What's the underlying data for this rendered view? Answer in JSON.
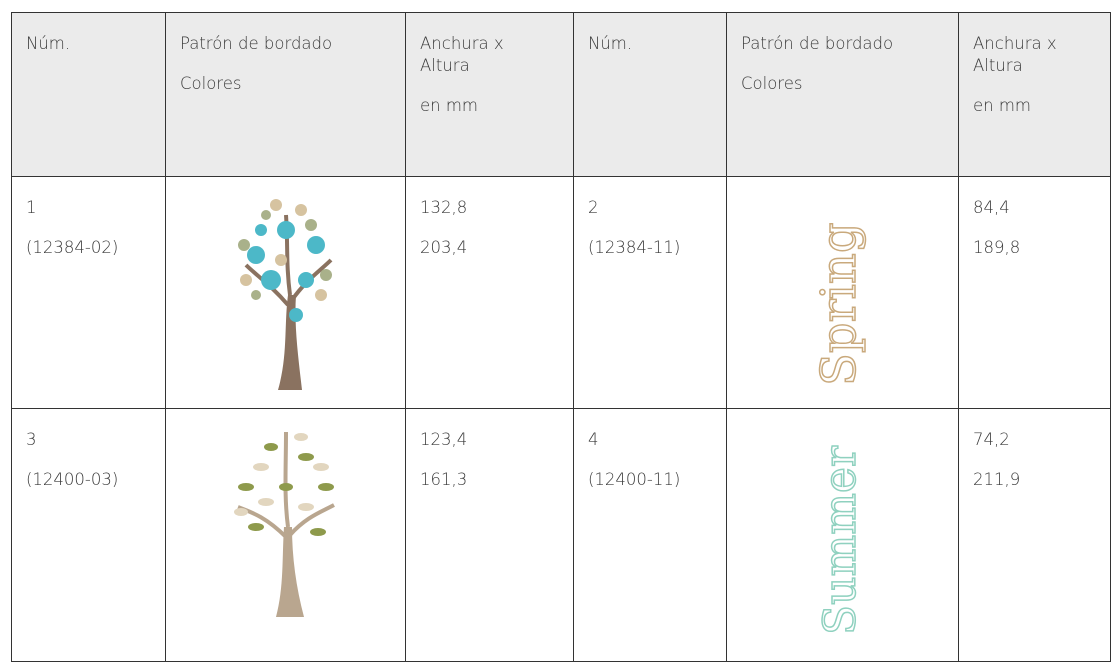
{
  "table": {
    "header": [
      "Núm.",
      "Patrón de bordado",
      "Colores",
      "Anchura x Altura",
      "en mm",
      "Núm.",
      "Patrón de bordado",
      "Colores",
      "Anchura x Altura",
      "en mm"
    ],
    "rows": [
      [
        {
          "num": "1",
          "code": "(12384-02)",
          "width": "132,8",
          "height": "203,4"
        },
        {
          "num": "2",
          "code": "(12384-11)",
          "width": "84,4",
          "height": "189,8",
          "motif": "Spring"
        }
      ],
      [
        {
          "num": "3",
          "code": "(12400-03)",
          "width": "123,4",
          "height": "161,3"
        },
        {
          "num": "4",
          "code": "(12400-11)",
          "width": "74,2",
          "height": "211,9",
          "motif": "Summer"
        }
      ]
    ]
  }
}
